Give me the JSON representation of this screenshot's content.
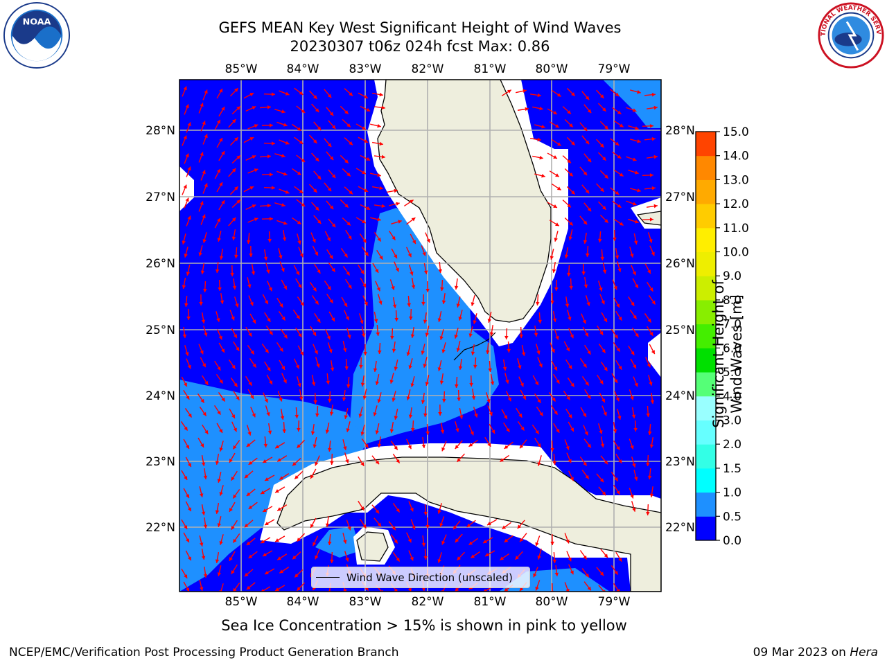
{
  "title_line1": "GEFS MEAN Key West Significant Height of Wind Waves",
  "title_line2": "20230307 t06z 024h fcst   Max: 0.86",
  "lon_labels": [
    "85°W",
    "84°W",
    "83°W",
    "82°W",
    "81°W",
    "80°W",
    "79°W"
  ],
  "lat_labels": [
    "28°N",
    "27°N",
    "26°N",
    "25°N",
    "24°N",
    "23°N",
    "22°N"
  ],
  "legend_label": "Wind Wave Direction (unscaled)",
  "colorbar": {
    "title": "Significant Height of Wind Waves [m]",
    "ticks": [
      "0.0",
      "0.5",
      "1.0",
      "1.5",
      "2.0",
      "3.0",
      "4.0",
      "5.0",
      "6.0",
      "7.0",
      "8.0",
      "9.0",
      "10.0",
      "11.0",
      "12.0",
      "13.0",
      "14.0",
      "15.0"
    ],
    "colors": [
      "#0000ff",
      "#1e90ff",
      "#00ffff",
      "#33ffe6",
      "#66ffff",
      "#99ffff",
      "#55ff77",
      "#00e000",
      "#44ee00",
      "#88ee00",
      "#ccee00",
      "#eeee00",
      "#ffee00",
      "#ffcc00",
      "#ffaa00",
      "#ff8800",
      "#ff4400",
      "#ff0000"
    ]
  },
  "caption": "Sea Ice Concentration > 15% is shown in pink to yellow",
  "footer_left": "NCEP/EMC/Verification Post Processing Product Generation Branch",
  "footer_date": "09 Mar 2023 on ",
  "footer_machine": "Hera",
  "colors": {
    "deep": "#0000ff",
    "shallow": "#1e90ff",
    "land": "#eeeedd",
    "arrow": "#ff0000",
    "grid": "#b0b0b0"
  },
  "logos": {
    "left": "NOAA",
    "right": "NATIONAL WEATHER SERVICE"
  }
}
